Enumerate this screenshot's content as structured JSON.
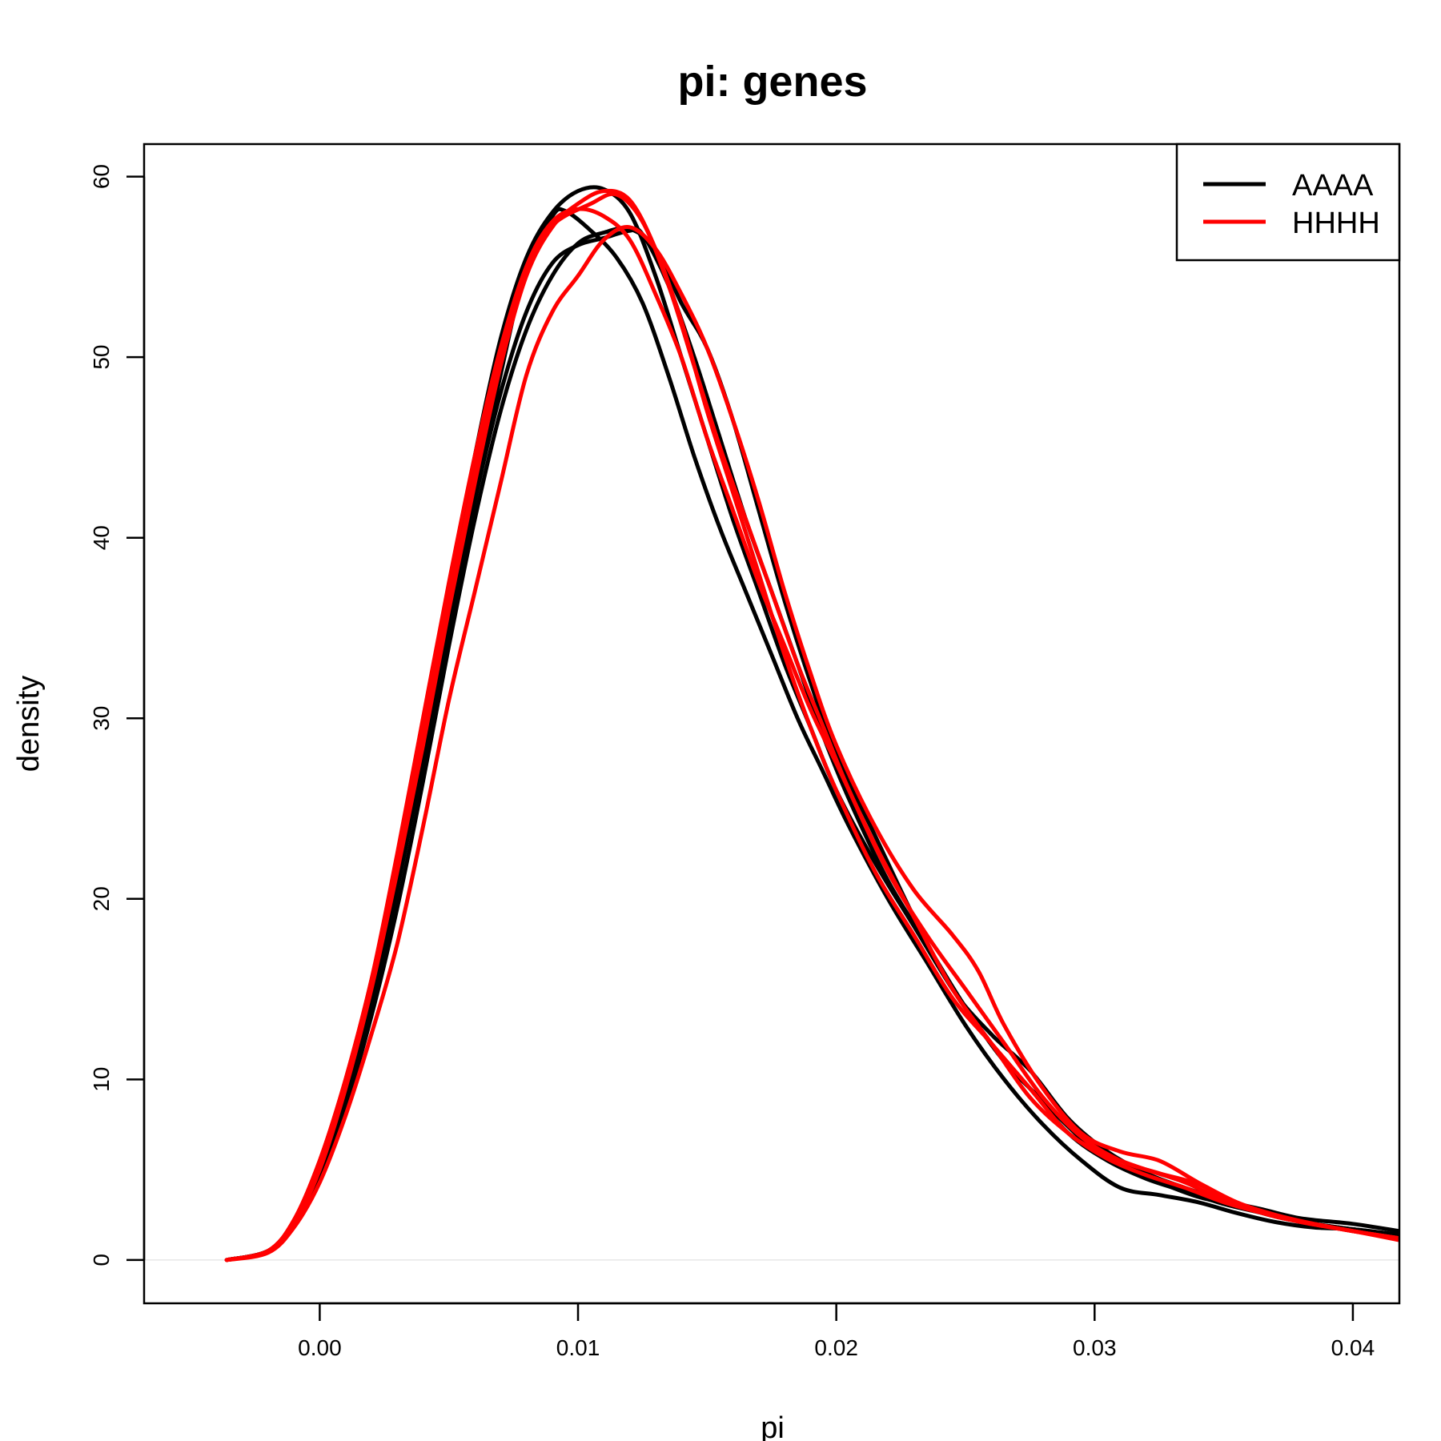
{
  "chart_data": {
    "type": "line",
    "title": "pi: genes",
    "xlabel": "pi",
    "ylabel": "density",
    "xlim": [
      -0.0068,
      0.0418
    ],
    "ylim": [
      -2.4,
      61.8
    ],
    "x_ticks": [
      "0.00",
      "0.01",
      "0.02",
      "0.03",
      "0.04"
    ],
    "y_ticks": [
      "0",
      "10",
      "20",
      "30",
      "40",
      "50",
      "60"
    ],
    "grid": false,
    "zero_line": true,
    "legend": {
      "position": "top-right",
      "entries": [
        {
          "label": "AAAA",
          "color": "#000000"
        },
        {
          "label": "HHHH",
          "color": "#ff0000"
        }
      ]
    },
    "series": [
      {
        "group": "AAAA",
        "color": "#000000",
        "points": [
          [
            -0.0036,
            0
          ],
          [
            -0.002,
            0.5
          ],
          [
            -0.001,
            2
          ],
          [
            0,
            4.8
          ],
          [
            0.001,
            9
          ],
          [
            0.002,
            14.5
          ],
          [
            0.003,
            21
          ],
          [
            0.004,
            28
          ],
          [
            0.005,
            35
          ],
          [
            0.006,
            42
          ],
          [
            0.007,
            49
          ],
          [
            0.008,
            55
          ],
          [
            0.009,
            57.8
          ],
          [
            0.0095,
            58.1
          ],
          [
            0.0105,
            57
          ],
          [
            0.0115,
            55.5
          ],
          [
            0.0125,
            53
          ],
          [
            0.0135,
            49
          ],
          [
            0.0145,
            44.5
          ],
          [
            0.0155,
            40.5
          ],
          [
            0.0165,
            37
          ],
          [
            0.0175,
            33.5
          ],
          [
            0.0185,
            30
          ],
          [
            0.0195,
            27
          ],
          [
            0.0205,
            24
          ],
          [
            0.022,
            20
          ],
          [
            0.0235,
            16.5
          ],
          [
            0.025,
            13
          ],
          [
            0.0265,
            10
          ],
          [
            0.028,
            7.5
          ],
          [
            0.0295,
            5.5
          ],
          [
            0.031,
            4
          ],
          [
            0.0325,
            3.6
          ],
          [
            0.034,
            3.2
          ],
          [
            0.0355,
            2.6
          ],
          [
            0.037,
            2.1
          ],
          [
            0.0385,
            1.8
          ],
          [
            0.04,
            1.7
          ],
          [
            0.0418,
            1.4
          ]
        ]
      },
      {
        "group": "AAAA",
        "color": "#000000",
        "points": [
          [
            -0.0036,
            0
          ],
          [
            -0.002,
            0.5
          ],
          [
            -0.001,
            2
          ],
          [
            0,
            4.8
          ],
          [
            0.001,
            9.2
          ],
          [
            0.002,
            15
          ],
          [
            0.003,
            22
          ],
          [
            0.004,
            29.5
          ],
          [
            0.005,
            37
          ],
          [
            0.006,
            44.5
          ],
          [
            0.007,
            51
          ],
          [
            0.008,
            55.5
          ],
          [
            0.009,
            58
          ],
          [
            0.01,
            59.2
          ],
          [
            0.011,
            59.3
          ],
          [
            0.012,
            58
          ],
          [
            0.013,
            54.5
          ],
          [
            0.014,
            50
          ],
          [
            0.015,
            45.5
          ],
          [
            0.016,
            41
          ],
          [
            0.017,
            37
          ],
          [
            0.018,
            33
          ],
          [
            0.019,
            29.5
          ],
          [
            0.02,
            26
          ],
          [
            0.0215,
            22
          ],
          [
            0.023,
            18.5
          ],
          [
            0.0245,
            15
          ],
          [
            0.026,
            12
          ],
          [
            0.0275,
            9.5
          ],
          [
            0.029,
            7
          ],
          [
            0.0305,
            5.5
          ],
          [
            0.032,
            4.5
          ],
          [
            0.0335,
            3.8
          ],
          [
            0.035,
            3.1
          ],
          [
            0.0365,
            2.6
          ],
          [
            0.038,
            2.1
          ],
          [
            0.04,
            1.7
          ],
          [
            0.0418,
            1.4
          ]
        ]
      },
      {
        "group": "AAAA",
        "color": "#000000",
        "points": [
          [
            -0.0036,
            0
          ],
          [
            -0.002,
            0.5
          ],
          [
            -0.001,
            2
          ],
          [
            0,
            4.5
          ],
          [
            0.001,
            8.5
          ],
          [
            0.002,
            13.5
          ],
          [
            0.003,
            19.5
          ],
          [
            0.004,
            26.5
          ],
          [
            0.005,
            34
          ],
          [
            0.006,
            41
          ],
          [
            0.007,
            47
          ],
          [
            0.008,
            51.5
          ],
          [
            0.009,
            54.5
          ],
          [
            0.01,
            56.3
          ],
          [
            0.011,
            56.9
          ],
          [
            0.012,
            57.1
          ],
          [
            0.013,
            56
          ],
          [
            0.014,
            53
          ],
          [
            0.015,
            50.5
          ],
          [
            0.016,
            46.5
          ],
          [
            0.017,
            41.5
          ],
          [
            0.018,
            36.5
          ],
          [
            0.019,
            32
          ],
          [
            0.02,
            28
          ],
          [
            0.0215,
            23.5
          ],
          [
            0.023,
            19
          ],
          [
            0.0245,
            15
          ],
          [
            0.026,
            12.5
          ],
          [
            0.0275,
            10.5
          ],
          [
            0.029,
            7.8
          ],
          [
            0.0305,
            6
          ],
          [
            0.032,
            4.8
          ],
          [
            0.0335,
            4
          ],
          [
            0.035,
            3.3
          ],
          [
            0.0365,
            2.8
          ],
          [
            0.038,
            2.3
          ],
          [
            0.04,
            2
          ],
          [
            0.0418,
            1.6
          ]
        ]
      },
      {
        "group": "AAAA",
        "color": "#000000",
        "points": [
          [
            -0.0036,
            0
          ],
          [
            -0.002,
            0.5
          ],
          [
            -0.001,
            2
          ],
          [
            0,
            4.5
          ],
          [
            0.001,
            8.5
          ],
          [
            0.002,
            14
          ],
          [
            0.003,
            20.5
          ],
          [
            0.004,
            27.5
          ],
          [
            0.005,
            35
          ],
          [
            0.006,
            42
          ],
          [
            0.007,
            48
          ],
          [
            0.008,
            52.5
          ],
          [
            0.009,
            55.2
          ],
          [
            0.01,
            56.2
          ],
          [
            0.011,
            56.6
          ],
          [
            0.012,
            57
          ],
          [
            0.0125,
            56.8
          ],
          [
            0.0135,
            54
          ],
          [
            0.0145,
            50
          ],
          [
            0.0155,
            45.5
          ],
          [
            0.0165,
            41
          ],
          [
            0.0175,
            37
          ],
          [
            0.0185,
            33
          ],
          [
            0.0195,
            29
          ],
          [
            0.0205,
            25.5
          ],
          [
            0.022,
            21
          ],
          [
            0.0235,
            17.5
          ],
          [
            0.025,
            14
          ],
          [
            0.0265,
            11
          ],
          [
            0.028,
            8.8
          ],
          [
            0.0295,
            6.7
          ],
          [
            0.031,
            5.2
          ],
          [
            0.0325,
            4.3
          ],
          [
            0.034,
            3.5
          ],
          [
            0.0355,
            3
          ],
          [
            0.037,
            2.4
          ],
          [
            0.0385,
            2
          ],
          [
            0.04,
            1.7
          ],
          [
            0.0418,
            1.4
          ]
        ]
      },
      {
        "group": "HHHH",
        "color": "#ff0000",
        "points": [
          [
            -0.0036,
            0
          ],
          [
            -0.002,
            0.5
          ],
          [
            -0.001,
            2.2
          ],
          [
            0,
            5.5
          ],
          [
            0.001,
            10
          ],
          [
            0.002,
            15.5
          ],
          [
            0.003,
            22
          ],
          [
            0.004,
            29
          ],
          [
            0.005,
            36.5
          ],
          [
            0.006,
            43.5
          ],
          [
            0.007,
            50
          ],
          [
            0.008,
            55
          ],
          [
            0.009,
            57.5
          ],
          [
            0.01,
            58.2
          ],
          [
            0.011,
            57.8
          ],
          [
            0.012,
            56.5
          ],
          [
            0.013,
            53.5
          ],
          [
            0.014,
            50
          ],
          [
            0.015,
            45.5
          ],
          [
            0.016,
            41.5
          ],
          [
            0.017,
            37.5
          ],
          [
            0.018,
            34
          ],
          [
            0.019,
            30.5
          ],
          [
            0.02,
            27.5
          ],
          [
            0.0215,
            23
          ],
          [
            0.023,
            19
          ],
          [
            0.0245,
            15
          ],
          [
            0.026,
            12
          ],
          [
            0.0275,
            9
          ],
          [
            0.029,
            7
          ],
          [
            0.0305,
            5.6
          ],
          [
            0.032,
            4.7
          ],
          [
            0.0335,
            4
          ],
          [
            0.035,
            3.2
          ],
          [
            0.0365,
            2.6
          ],
          [
            0.038,
            2.1
          ],
          [
            0.04,
            1.6
          ],
          [
            0.0418,
            1.1
          ]
        ]
      },
      {
        "group": "HHHH",
        "color": "#ff0000",
        "points": [
          [
            -0.0036,
            0
          ],
          [
            -0.002,
            0.5
          ],
          [
            -0.001,
            2.2
          ],
          [
            0,
            5.5
          ],
          [
            0.001,
            10
          ],
          [
            0.002,
            15.5
          ],
          [
            0.003,
            22.5
          ],
          [
            0.004,
            30
          ],
          [
            0.005,
            37.5
          ],
          [
            0.006,
            44.5
          ],
          [
            0.007,
            50.5
          ],
          [
            0.008,
            55
          ],
          [
            0.009,
            57.3
          ],
          [
            0.0105,
            58.5
          ],
          [
            0.0115,
            59
          ],
          [
            0.0125,
            57.5
          ],
          [
            0.0135,
            54
          ],
          [
            0.0145,
            49.5
          ],
          [
            0.0155,
            45
          ],
          [
            0.0165,
            41
          ],
          [
            0.0175,
            37
          ],
          [
            0.0185,
            33
          ],
          [
            0.0195,
            29.5
          ],
          [
            0.0205,
            26
          ],
          [
            0.022,
            21.5
          ],
          [
            0.0235,
            18
          ],
          [
            0.025,
            15
          ],
          [
            0.0265,
            12
          ],
          [
            0.028,
            9
          ],
          [
            0.0295,
            6.8
          ],
          [
            0.031,
            5.5
          ],
          [
            0.0325,
            4.8
          ],
          [
            0.034,
            4.2
          ],
          [
            0.0355,
            3.1
          ],
          [
            0.037,
            2.4
          ],
          [
            0.0385,
            2
          ],
          [
            0.04,
            1.6
          ],
          [
            0.0418,
            1.2
          ]
        ]
      },
      {
        "group": "HHHH",
        "color": "#ff0000",
        "points": [
          [
            -0.0036,
            0
          ],
          [
            -0.002,
            0.5
          ],
          [
            -0.001,
            2
          ],
          [
            0,
            5
          ],
          [
            0.001,
            9.5
          ],
          [
            0.002,
            15
          ],
          [
            0.003,
            21.5
          ],
          [
            0.004,
            28.5
          ],
          [
            0.005,
            36
          ],
          [
            0.006,
            43
          ],
          [
            0.007,
            49.5
          ],
          [
            0.008,
            54.5
          ],
          [
            0.009,
            57.2
          ],
          [
            0.01,
            58.5
          ],
          [
            0.011,
            59.2
          ],
          [
            0.012,
            58.7
          ],
          [
            0.013,
            56
          ],
          [
            0.014,
            52
          ],
          [
            0.015,
            47
          ],
          [
            0.016,
            42.5
          ],
          [
            0.017,
            38
          ],
          [
            0.018,
            33.5
          ],
          [
            0.019,
            29.5
          ],
          [
            0.02,
            26
          ],
          [
            0.0215,
            21.5
          ],
          [
            0.023,
            18
          ],
          [
            0.0245,
            14.5
          ],
          [
            0.026,
            12
          ],
          [
            0.0275,
            9.5
          ],
          [
            0.029,
            7
          ],
          [
            0.0305,
            5.8
          ],
          [
            0.032,
            5
          ],
          [
            0.0335,
            4.3
          ],
          [
            0.035,
            3.3
          ],
          [
            0.0365,
            2.6
          ],
          [
            0.038,
            2.1
          ],
          [
            0.04,
            1.6
          ],
          [
            0.0418,
            1.2
          ]
        ]
      },
      {
        "group": "HHHH",
        "color": "#ff0000",
        "points": [
          [
            -0.0036,
            0
          ],
          [
            -0.002,
            0.4
          ],
          [
            -0.001,
            1.8
          ],
          [
            0,
            4.3
          ],
          [
            0.001,
            8
          ],
          [
            0.002,
            12.5
          ],
          [
            0.003,
            17.5
          ],
          [
            0.004,
            24
          ],
          [
            0.005,
            31
          ],
          [
            0.006,
            37
          ],
          [
            0.007,
            43
          ],
          [
            0.008,
            49
          ],
          [
            0.009,
            52.5
          ],
          [
            0.01,
            54.5
          ],
          [
            0.011,
            56.5
          ],
          [
            0.012,
            57.2
          ],
          [
            0.013,
            56
          ],
          [
            0.014,
            53.5
          ],
          [
            0.015,
            50.5
          ],
          [
            0.016,
            46.5
          ],
          [
            0.017,
            42
          ],
          [
            0.018,
            37
          ],
          [
            0.019,
            32.5
          ],
          [
            0.02,
            28.5
          ],
          [
            0.0215,
            24
          ],
          [
            0.023,
            20.5
          ],
          [
            0.0245,
            18
          ],
          [
            0.0255,
            16
          ],
          [
            0.0265,
            13
          ],
          [
            0.028,
            9.5
          ],
          [
            0.0295,
            7
          ],
          [
            0.031,
            6
          ],
          [
            0.0325,
            5.5
          ],
          [
            0.034,
            4.3
          ],
          [
            0.0355,
            3.2
          ],
          [
            0.037,
            2.5
          ],
          [
            0.0385,
            2
          ],
          [
            0.04,
            1.6
          ],
          [
            0.0418,
            1.2
          ]
        ]
      }
    ]
  }
}
